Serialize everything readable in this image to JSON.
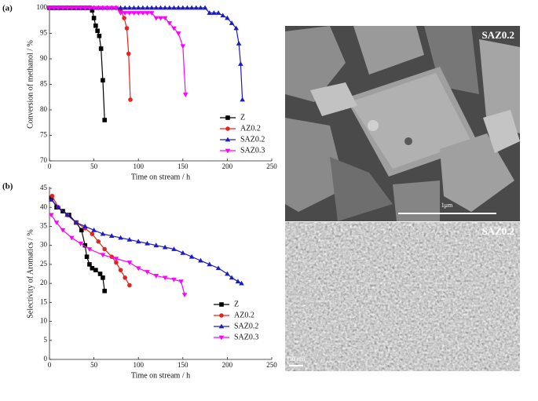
{
  "chart_data": [
    {
      "type": "line",
      "panel_label": "(a)",
      "x_label": "Time on stream / h",
      "y_label": "Conversion of methanol / %",
      "xlim": [
        0,
        250
      ],
      "xticks": [
        0,
        50,
        100,
        150,
        200,
        250
      ],
      "ylim": [
        70,
        100
      ],
      "yticks": [
        70,
        75,
        80,
        85,
        90,
        95,
        100
      ],
      "series": [
        {
          "name": "Z",
          "color": "#000000",
          "marker": "square",
          "x": [
            0,
            5,
            10,
            15,
            20,
            25,
            30,
            35,
            40,
            45,
            48,
            50,
            52,
            54,
            56,
            58,
            60,
            62
          ],
          "values": [
            100,
            100,
            100,
            100,
            100,
            100,
            100,
            100,
            100,
            100,
            99.5,
            98,
            96.5,
            95.5,
            94.5,
            92,
            85.8,
            78
          ]
        },
        {
          "name": "AZ0.2",
          "color": "#e52420",
          "marker": "circle",
          "x": [
            0,
            5,
            10,
            15,
            20,
            25,
            30,
            35,
            40,
            45,
            50,
            55,
            60,
            65,
            70,
            75,
            80,
            84,
            87,
            89,
            91
          ],
          "values": [
            100,
            100,
            100,
            100,
            100,
            100,
            100,
            100,
            100,
            100,
            100,
            100,
            100,
            100,
            100,
            100,
            99.5,
            98,
            96,
            91,
            82
          ]
        },
        {
          "name": "SAZ0.2",
          "color": "#1c1cc4",
          "marker": "triangle-up",
          "x": [
            0,
            5,
            10,
            15,
            20,
            25,
            30,
            35,
            40,
            45,
            50,
            55,
            60,
            65,
            70,
            75,
            80,
            85,
            90,
            95,
            100,
            105,
            110,
            115,
            120,
            125,
            130,
            135,
            140,
            145,
            150,
            155,
            160,
            165,
            170,
            175,
            180,
            185,
            190,
            195,
            200,
            205,
            210,
            213,
            215,
            217
          ],
          "values": [
            100,
            100,
            100,
            100,
            100,
            100,
            100,
            100,
            100,
            100,
            100,
            100,
            100,
            100,
            100,
            100,
            100,
            100,
            100,
            100,
            100,
            100,
            100,
            100,
            100,
            100,
            100,
            100,
            100,
            100,
            100,
            100,
            100,
            100,
            100,
            100,
            99,
            99,
            99,
            98.5,
            98,
            97,
            96,
            93,
            89,
            82
          ]
        },
        {
          "name": "SAZ0.3",
          "color": "#ff00ff",
          "marker": "triangle-down",
          "x": [
            0,
            5,
            10,
            15,
            20,
            25,
            30,
            35,
            40,
            45,
            50,
            55,
            60,
            65,
            70,
            75,
            80,
            85,
            90,
            95,
            100,
            105,
            110,
            115,
            120,
            125,
            130,
            135,
            140,
            145,
            150,
            153
          ],
          "values": [
            100,
            100,
            100,
            100,
            100,
            100,
            100,
            100,
            100,
            100,
            100,
            100,
            100,
            100,
            100,
            100,
            99,
            99,
            99,
            99,
            99,
            99,
            99,
            99,
            98,
            98,
            98,
            97,
            96,
            95,
            92.5,
            83
          ]
        }
      ]
    },
    {
      "type": "line",
      "panel_label": "(b)",
      "x_label": "Time on stream / h",
      "y_label": "Selectivity of Aromatics / %",
      "xlim": [
        0,
        250
      ],
      "xticks": [
        0,
        50,
        100,
        150,
        200,
        250
      ],
      "ylim": [
        0,
        45
      ],
      "yticks": [
        0,
        5,
        10,
        15,
        20,
        25,
        30,
        35,
        40,
        45
      ],
      "series": [
        {
          "name": "Z",
          "color": "#000000",
          "marker": "square",
          "x": [
            2,
            8,
            15,
            22,
            30,
            36,
            40,
            42,
            45,
            48,
            52,
            57,
            60,
            62
          ],
          "values": [
            42.5,
            40,
            39,
            38,
            36,
            34,
            30,
            27,
            25,
            24,
            23.5,
            22.5,
            21.5,
            18
          ]
        },
        {
          "name": "AZ0.2",
          "color": "#e52420",
          "marker": "circle",
          "x": [
            3,
            10,
            20,
            30,
            40,
            48,
            55,
            62,
            70,
            75,
            80,
            85,
            90
          ],
          "values": [
            43,
            40,
            38,
            36,
            34.5,
            33,
            31,
            29,
            27,
            25.5,
            23.5,
            21.5,
            19.5
          ]
        },
        {
          "name": "SAZ0.2",
          "color": "#1c1cc4",
          "marker": "triangle-up",
          "x": [
            2,
            10,
            20,
            30,
            40,
            50,
            60,
            70,
            80,
            90,
            100,
            110,
            120,
            130,
            140,
            150,
            160,
            170,
            180,
            190,
            200,
            205,
            212,
            216
          ],
          "values": [
            42,
            40,
            38,
            36,
            35,
            34,
            33,
            32.5,
            32,
            31.5,
            31,
            30.5,
            30,
            29.5,
            29,
            28,
            27,
            26,
            25,
            24,
            22.5,
            21.5,
            20.5,
            20
          ]
        },
        {
          "name": "SAZ0.3",
          "color": "#ff00ff",
          "marker": "triangle-down",
          "x": [
            2,
            8,
            15,
            25,
            35,
            45,
            60,
            75,
            90,
            100,
            110,
            120,
            130,
            140,
            148,
            152
          ],
          "values": [
            38,
            36,
            34,
            32,
            30.5,
            29,
            27.5,
            26.5,
            25.5,
            24,
            23,
            22,
            21.5,
            21,
            20.5,
            17
          ]
        }
      ]
    }
  ],
  "images": [
    {
      "label": "SAZ0.2",
      "scale_bar": "1μm"
    },
    {
      "label": "SAZ0.2",
      "scale_bar": "10 nm"
    }
  ]
}
